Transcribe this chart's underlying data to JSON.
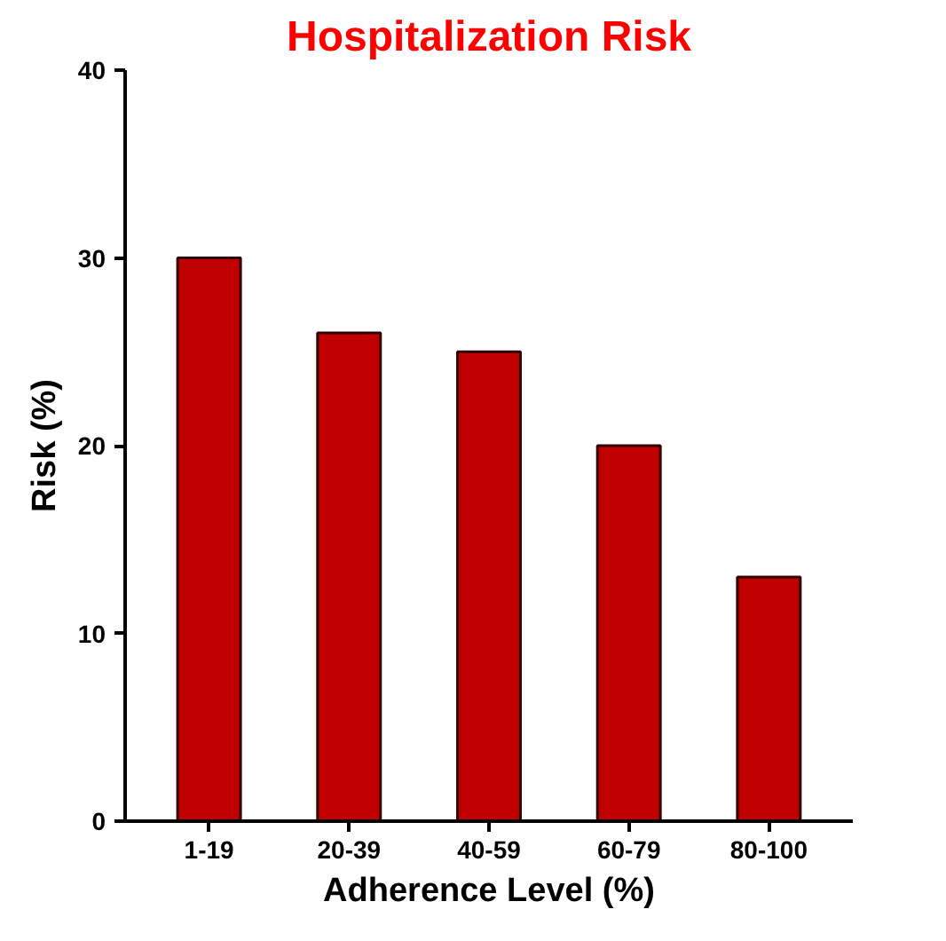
{
  "chart_data": {
    "type": "bar",
    "title": "Hospitalization Risk",
    "xlabel": "Adherence Level (%)",
    "ylabel": "Risk (%)",
    "categories": [
      "1-19",
      "20-39",
      "40-59",
      "60-79",
      "80-100"
    ],
    "values": [
      30,
      26,
      25,
      20,
      13
    ],
    "color": "#c00000",
    "ylim": [
      0,
      40
    ],
    "yticks": [
      0,
      10,
      20,
      30,
      40
    ],
    "grid": false
  }
}
